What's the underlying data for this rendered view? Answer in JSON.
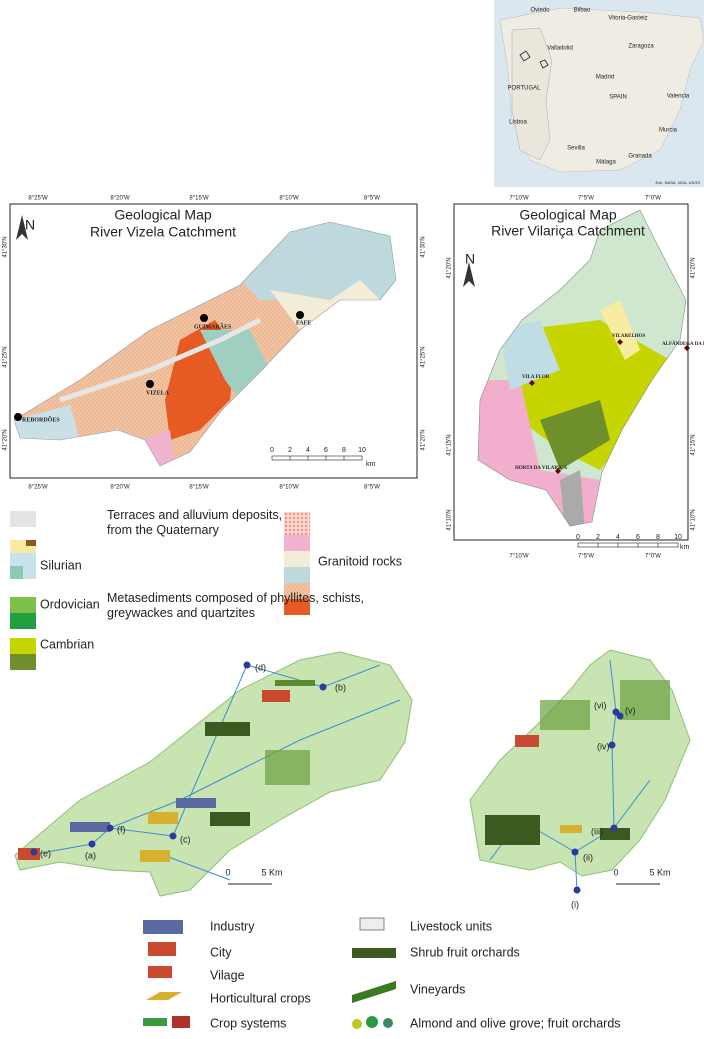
{
  "inset_map": {
    "labels": [
      "Oviedo",
      "Bilbao",
      "Vitoria-Gasteiz",
      "Valladolid",
      "Zaragoza",
      "Madrid",
      "PORTUGAL",
      "SPAIN",
      "Valencia",
      "Lisboa",
      "Murcia",
      "Sevilla",
      "Málaga",
      "Granada"
    ],
    "attribution": "Esri, NASA, NGA, USGS"
  },
  "vizela_map": {
    "title": "Geological Map",
    "subtitle": "River Vizela Catchment",
    "north": "N",
    "lon_ticks": [
      "8°25'W",
      "8°20'W",
      "8°15'W",
      "8°10'W",
      "8°5'W"
    ],
    "lat_ticks": [
      "41°30'N",
      "41°25'N",
      "41°20'N"
    ],
    "places": [
      "GUIMARÃES",
      "FAFE",
      "VIZELA",
      "REBORDÕES"
    ],
    "scale": {
      "ticks": [
        "0",
        "2",
        "4",
        "6",
        "8",
        "10"
      ],
      "unit": "km"
    }
  },
  "vilarica_map": {
    "title": "Geological Map",
    "subtitle": "River Vilariça Catchment",
    "north": "N",
    "lon_ticks": [
      "7°10'W",
      "7°5'W",
      "7°0'W"
    ],
    "lat_ticks": [
      "41°20'N",
      "41°15'N",
      "41°10'N"
    ],
    "places": [
      "VILARELHOS",
      "ALFÂNDEGA DA FÉ",
      "VILA FLOR",
      "HORTA DA VILARIÇA"
    ],
    "scale": {
      "ticks": [
        "0",
        "2",
        "4",
        "6",
        "8",
        "10"
      ],
      "unit": "km"
    }
  },
  "geology_legend": {
    "items": [
      "Terraces and alluvium deposits, from the Quaternary",
      "Silurian",
      "Metasediments composed of phyllites, schists, greywackes and quartzites",
      "Ordovician",
      "Cambrian",
      "Granitoid rocks"
    ]
  },
  "land_use_maps": {
    "vizela_points": [
      "(a)",
      "(b)",
      "(c)",
      "(d)",
      "(e)",
      "(f)"
    ],
    "vilarica_points": [
      "(i)",
      "(ii)",
      "(iii)",
      "(iv)",
      "(v)",
      "(vi)"
    ],
    "vizela_scale": [
      "0",
      "5 Km"
    ],
    "vilarica_scale": [
      "0",
      "5 Km"
    ]
  },
  "land_use_legend": {
    "items": [
      "Industry",
      "City",
      "Vilage",
      "Horticultural crops",
      "Crop systems",
      "Livestock units",
      "Shrub fruit orchards",
      "Vineyards",
      "Almond and olive grove; fruit orchards"
    ]
  }
}
